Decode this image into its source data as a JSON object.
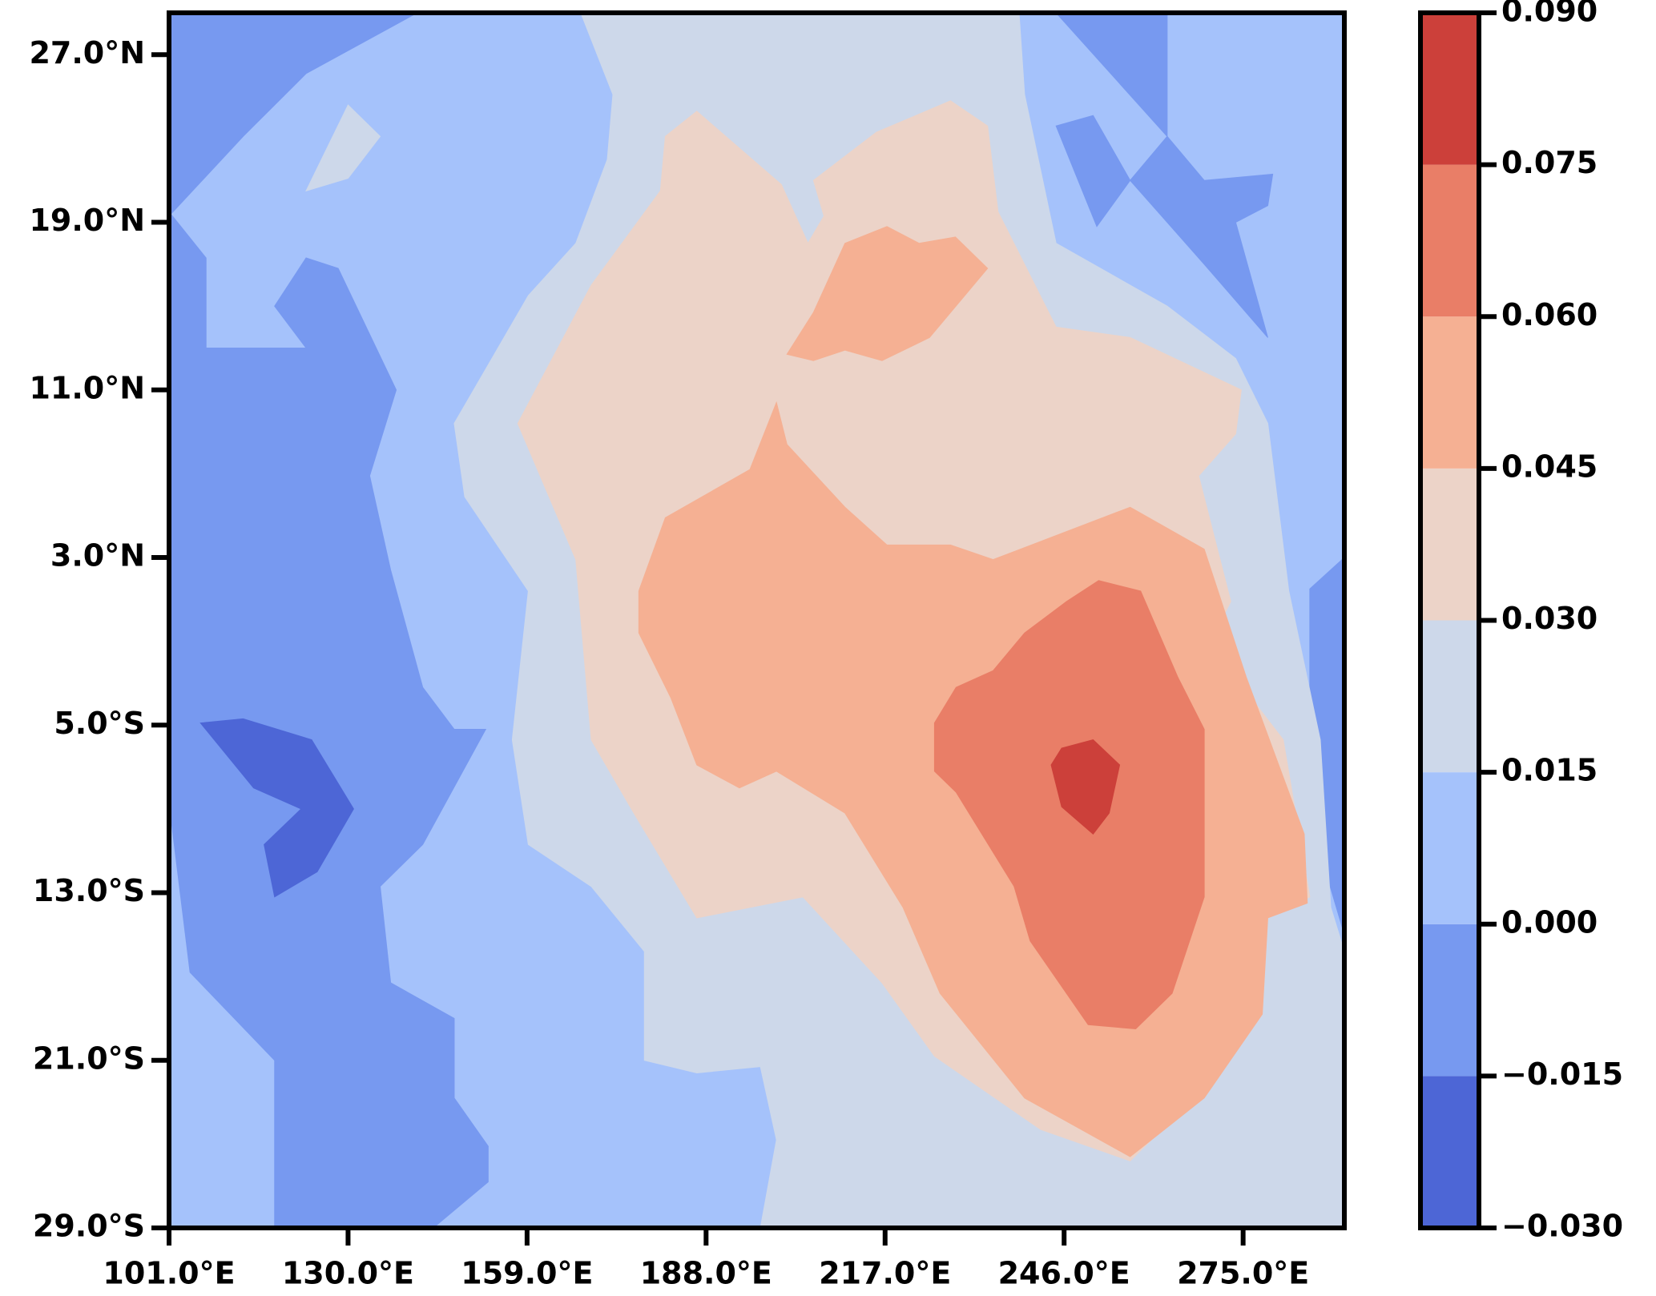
{
  "chart_data": {
    "type": "contour",
    "xlim": [
      101,
      291.4
    ],
    "ylim": [
      -29,
      29
    ],
    "xticks": [
      {
        "value": 101,
        "label": "101.0°E"
      },
      {
        "value": 130,
        "label": "130.0°E"
      },
      {
        "value": 159,
        "label": "159.0°E"
      },
      {
        "value": 188,
        "label": "188.0°E"
      },
      {
        "value": 217,
        "label": "217.0°E"
      },
      {
        "value": 246,
        "label": "246.0°E"
      },
      {
        "value": 275,
        "label": "275.0°E"
      }
    ],
    "yticks": [
      {
        "value": -29,
        "label": "29.0°S"
      },
      {
        "value": -21,
        "label": "21.0°S"
      },
      {
        "value": -13,
        "label": "13.0°S"
      },
      {
        "value": -5,
        "label": "5.0°S"
      },
      {
        "value": 3,
        "label": "3.0°N"
      },
      {
        "value": 11,
        "label": "11.0°N"
      },
      {
        "value": 19,
        "label": "19.0°N"
      },
      {
        "value": 27,
        "label": "27.0°N"
      }
    ],
    "levels": [
      {
        "value": -0.03,
        "label": "−0.030"
      },
      {
        "value": -0.015,
        "label": "−0.015"
      },
      {
        "value": 0,
        "label": "0.000"
      },
      0.015,
      {
        "value": 0.03,
        "label": "0.030"
      },
      0.045,
      {
        "value": 0.06,
        "label": "0.060"
      },
      0.075,
      {
        "value": 0.09,
        "label": "0.090"
      }
    ],
    "colors": [
      "#4d66d6",
      "#7799f0",
      "#a5c2fb",
      "#cdd8ea",
      "#ecd3c8",
      "#f5b093",
      "#e97e67",
      "#cc403a"
    ],
    "contours": [
      {
        "level": 0,
        "points": [
          [
            101,
            29
          ],
          [
            291.4,
            29
          ],
          [
            291.4,
            -29
          ],
          [
            101,
            -29
          ]
        ]
      },
      {
        "level": -0.015,
        "points": [
          [
            101,
            29
          ],
          [
            141.2,
            29
          ],
          [
            123.2,
            26.1
          ],
          [
            113,
            23.1
          ],
          [
            101,
            19.3
          ]
        ]
      },
      {
        "level": -0.015,
        "points": [
          [
            101,
            19.5
          ],
          [
            107,
            17.3
          ],
          [
            107,
            13
          ],
          [
            123.2,
            13
          ],
          [
            118.1,
            15
          ],
          [
            123.2,
            17.3
          ],
          [
            128.4,
            16.8
          ],
          [
            137.8,
            11
          ],
          [
            133.5,
            6.9
          ],
          [
            136.9,
            2.4
          ],
          [
            142.1,
            -3.2
          ],
          [
            147.2,
            -5.2
          ],
          [
            152.3,
            -5.2
          ],
          [
            142.1,
            -10.7
          ],
          [
            135.2,
            -12.7
          ],
          [
            136.9,
            -17.3
          ],
          [
            147.2,
            -19
          ],
          [
            147.2,
            -22.8
          ],
          [
            152.7,
            -25.1
          ],
          [
            152.7,
            -26.8
          ],
          [
            143.8,
            -29
          ],
          [
            118.1,
            -29
          ],
          [
            118.1,
            -21
          ],
          [
            104.4,
            -16.8
          ],
          [
            101,
            -8.7
          ]
        ]
      },
      {
        "level": -0.03,
        "points": [
          [
            106.1,
            -4.9
          ],
          [
            113,
            -4.7
          ],
          [
            124.1,
            -5.7
          ],
          [
            130.9,
            -9
          ],
          [
            125,
            -12
          ],
          [
            118.1,
            -13.2
          ],
          [
            116.4,
            -10.7
          ],
          [
            122.4,
            -9
          ],
          [
            114.7,
            -8
          ]
        ]
      },
      {
        "level": -0.015,
        "points": [
          [
            244.7,
            29
          ],
          [
            262.7,
            29
          ],
          [
            262.7,
            23.1
          ]
        ]
      },
      {
        "level": -0.015,
        "points": [
          [
            244.7,
            23.6
          ],
          [
            250.7,
            24.1
          ],
          [
            256.7,
            21
          ],
          [
            262.7,
            23.1
          ],
          [
            268.7,
            21
          ],
          [
            279.8,
            21.3
          ],
          [
            279,
            19.8
          ],
          [
            273.8,
            19
          ],
          [
            279,
            13.5
          ],
          [
            268.7,
            17
          ],
          [
            262.7,
            19
          ],
          [
            256.7,
            21
          ],
          [
            251.3,
            18.8
          ]
        ]
      },
      {
        "level": -0.015,
        "points": [
          [
            285.8,
            1.5
          ],
          [
            291.4,
            3
          ],
          [
            291.4,
            -15
          ],
          [
            285.8,
            -9.4
          ]
        ]
      },
      {
        "level": 0.015,
        "points": [
          [
            167.7,
            29
          ],
          [
            238.7,
            29
          ],
          [
            239.6,
            25.1
          ],
          [
            244.7,
            18
          ],
          [
            256.7,
            16
          ],
          [
            262.7,
            15
          ],
          [
            273.8,
            12.5
          ],
          [
            279,
            9.4
          ],
          [
            282.4,
            1.4
          ],
          [
            287.5,
            -5.7
          ],
          [
            289.2,
            -13.7
          ],
          [
            291.4,
            -15.8
          ],
          [
            291.4,
            -29
          ],
          [
            196.8,
            -29
          ],
          [
            199.4,
            -24.8
          ],
          [
            196.8,
            -21.3
          ],
          [
            186.5,
            -21.6
          ],
          [
            178,
            -21
          ],
          [
            178,
            -15.8
          ],
          [
            169.4,
            -12.7
          ],
          [
            159.2,
            -10.7
          ],
          [
            156.6,
            -5.7
          ],
          [
            159.2,
            1.4
          ],
          [
            148.9,
            5.9
          ],
          [
            147.2,
            9.4
          ],
          [
            159.2,
            15.5
          ],
          [
            166.9,
            18
          ],
          [
            172,
            22
          ],
          [
            172.9,
            25.1
          ]
        ]
      },
      {
        "level": 0.015,
        "points": [
          [
            123.2,
            20.5
          ],
          [
            130,
            24.6
          ],
          [
            135.2,
            23.1
          ],
          [
            130,
            21.1
          ]
        ]
      },
      {
        "level": 0.03,
        "points": [
          [
            181.4,
            23.1
          ],
          [
            186.5,
            24.3
          ],
          [
            200.2,
            20.8
          ],
          [
            204.5,
            18
          ],
          [
            207.1,
            19.3
          ],
          [
            205.4,
            21
          ],
          [
            215.6,
            23.3
          ],
          [
            227.6,
            24.8
          ],
          [
            233.6,
            23.6
          ],
          [
            235.3,
            19.5
          ],
          [
            244.7,
            14
          ],
          [
            256.7,
            13.5
          ],
          [
            274.7,
            11
          ],
          [
            273.8,
            8.9
          ],
          [
            267.8,
            6.9
          ],
          [
            273,
            0.9
          ],
          [
            269.5,
            -1.1
          ],
          [
            281.5,
            -5.7
          ],
          [
            285.8,
            -13.2
          ],
          [
            279,
            -14.2
          ],
          [
            278.1,
            -18.8
          ],
          [
            267,
            -22.8
          ],
          [
            256.7,
            -25.8
          ],
          [
            242.2,
            -24.3
          ],
          [
            225,
            -20.8
          ],
          [
            216.5,
            -17.3
          ],
          [
            203.7,
            -13.2
          ],
          [
            186.5,
            -14.2
          ],
          [
            176.3,
            -9.2
          ],
          [
            169.4,
            -5.7
          ],
          [
            166.9,
            2.9
          ],
          [
            157.5,
            9.4
          ],
          [
            169.4,
            16
          ],
          [
            180.6,
            20.5
          ]
        ]
      },
      {
        "level": 0.045,
        "points": [
          [
            177.1,
            1.4
          ],
          [
            181.4,
            4.9
          ],
          [
            195.1,
            7.2
          ],
          [
            199.4,
            10.4
          ],
          [
            201.1,
            8.4
          ],
          [
            210.5,
            5.4
          ],
          [
            217.3,
            3.6
          ],
          [
            227.6,
            3.6
          ],
          [
            234.5,
            2.9
          ],
          [
            256.7,
            5.4
          ],
          [
            268.7,
            3.4
          ],
          [
            275.5,
            -2.7
          ],
          [
            284.9,
            -10.2
          ],
          [
            285.4,
            -13.5
          ],
          [
            279,
            -14.2
          ],
          [
            278.1,
            -18.8
          ],
          [
            268.7,
            -22.8
          ],
          [
            256.7,
            -25.6
          ],
          [
            239.6,
            -22.8
          ],
          [
            225.9,
            -17.8
          ],
          [
            219.9,
            -13.7
          ],
          [
            210.5,
            -9.2
          ],
          [
            199.4,
            -7.2
          ],
          [
            193.4,
            -8
          ],
          [
            186.5,
            -6.9
          ],
          [
            182.3,
            -3.7
          ],
          [
            177.1,
            -0.6
          ]
        ]
      },
      {
        "level": 0.045,
        "points": [
          [
            205.4,
            14.7
          ],
          [
            210.5,
            18
          ],
          [
            217.3,
            18.8
          ],
          [
            222.5,
            18
          ],
          [
            228.4,
            18.3
          ],
          [
            233.6,
            16.8
          ],
          [
            224.2,
            13.5
          ],
          [
            216.5,
            12.4
          ],
          [
            210.5,
            12.9
          ],
          [
            205.4,
            12.4
          ],
          [
            201.1,
            12.7
          ]
        ]
      },
      {
        "level": 0.06,
        "points": [
          [
            225,
            -4.9
          ],
          [
            228.5,
            -3.2
          ],
          [
            234.5,
            -2.4
          ],
          [
            239.6,
            -0.6
          ],
          [
            246.4,
            0.9
          ],
          [
            251.6,
            1.9
          ],
          [
            258.4,
            1.4
          ],
          [
            264.4,
            -2.7
          ],
          [
            268.7,
            -5.2
          ],
          [
            268.7,
            -13.2
          ],
          [
            263.5,
            -17.8
          ],
          [
            257.6,
            -19.5
          ],
          [
            249.9,
            -19.3
          ],
          [
            240.5,
            -15.3
          ],
          [
            237.9,
            -12.7
          ],
          [
            228.5,
            -8.2
          ],
          [
            225,
            -7.2
          ]
        ]
      },
      {
        "level": 0.075,
        "points": [
          [
            243.9,
            -6.9
          ],
          [
            245.6,
            -6.1
          ],
          [
            250.7,
            -5.7
          ],
          [
            255,
            -6.9
          ],
          [
            253.3,
            -9.2
          ],
          [
            250.7,
            -10.2
          ],
          [
            245.6,
            -8.9
          ]
        ]
      }
    ]
  }
}
